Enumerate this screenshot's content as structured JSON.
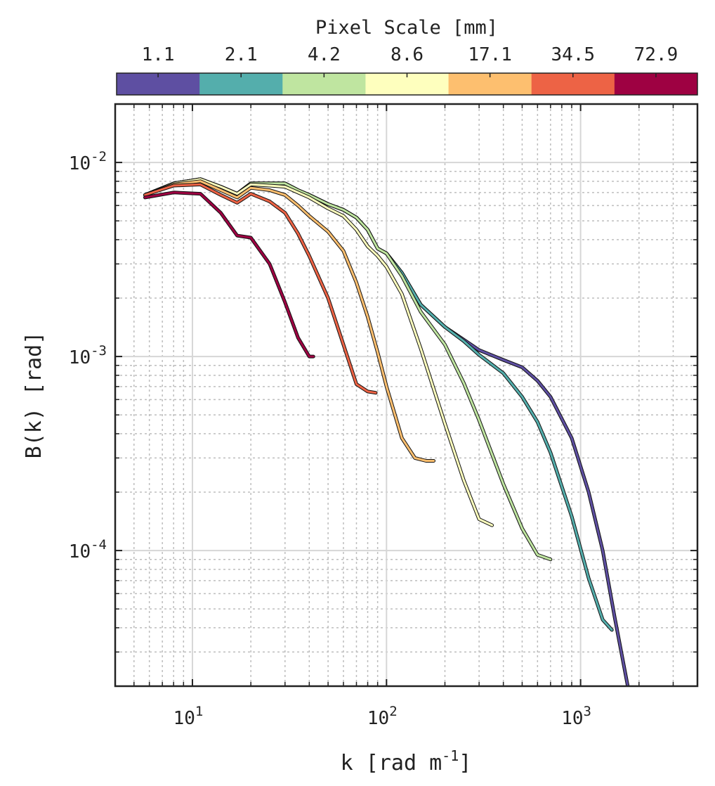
{
  "chart_data": {
    "type": "line",
    "xlabel": {
      "base": "k [rad m",
      "sup": "-1",
      "tail": "]"
    },
    "ylabel": "B(k) [rad]",
    "xscale": "log",
    "yscale": "log",
    "xlim": [
      4,
      4000
    ],
    "ylim": [
      2e-05,
      0.02
    ],
    "x_ticks": [
      {
        "base": "10",
        "exp": "1",
        "value": 10
      },
      {
        "base": "10",
        "exp": "2",
        "value": 100
      },
      {
        "base": "10",
        "exp": "3",
        "value": 1000
      }
    ],
    "y_ticks": [
      {
        "base": "10",
        "exp": "-4",
        "value": 0.0001
      },
      {
        "base": "10",
        "exp": "-3",
        "value": 0.001
      },
      {
        "base": "10",
        "exp": "-2",
        "value": 0.01
      }
    ],
    "grid": true,
    "colorbar": {
      "title": "Pixel Scale [mm]",
      "placement": "top",
      "labels": [
        "1.1",
        "2.1",
        "4.2",
        "8.6",
        "17.1",
        "34.5",
        "72.9"
      ],
      "colors": [
        "#5e4fa2",
        "#54aeac",
        "#bfe5a0",
        "#feffbe",
        "#fdbf6f",
        "#ed6345",
        "#9e0142"
      ]
    },
    "series": [
      {
        "color": "#5e4fa2",
        "x": [
          5.7,
          8,
          11,
          14,
          17,
          20,
          25,
          30,
          35,
          40,
          50,
          60,
          70,
          80,
          90,
          100,
          120,
          150,
          200,
          250,
          300,
          400,
          500,
          600,
          700,
          900,
          1100,
          1300,
          1500,
          1750
        ],
        "y": [
          0.0068,
          0.0078,
          0.0082,
          0.0075,
          0.0069,
          0.0078,
          0.0078,
          0.0078,
          0.0072,
          0.0068,
          0.0061,
          0.0057,
          0.0052,
          0.0045,
          0.0036,
          0.0034,
          0.0027,
          0.00185,
          0.00142,
          0.00122,
          0.00108,
          0.00096,
          0.00088,
          0.00075,
          0.00062,
          0.00038,
          0.0002,
          0.0001,
          4.5e-05,
          2e-05
        ]
      },
      {
        "color": "#54aeac",
        "x": [
          5.7,
          8,
          11,
          14,
          17,
          20,
          25,
          30,
          35,
          40,
          50,
          60,
          70,
          80,
          90,
          100,
          120,
          150,
          200,
          250,
          300,
          400,
          500,
          600,
          700,
          900,
          1100,
          1300,
          1450
        ],
        "y": [
          0.0068,
          0.0078,
          0.0082,
          0.0075,
          0.0069,
          0.0078,
          0.0078,
          0.0078,
          0.0072,
          0.0068,
          0.0061,
          0.0057,
          0.0052,
          0.0045,
          0.0036,
          0.0034,
          0.0027,
          0.00185,
          0.00142,
          0.0012,
          0.00102,
          0.00082,
          0.00062,
          0.00046,
          0.00032,
          0.00015,
          7.2e-05,
          4.4e-05,
          3.9e-05
        ]
      },
      {
        "color": "#bfe5a0",
        "x": [
          5.7,
          8,
          11,
          14,
          17,
          20,
          25,
          30,
          35,
          40,
          50,
          60,
          70,
          80,
          90,
          100,
          120,
          150,
          200,
          250,
          300,
          400,
          500,
          600,
          700
        ],
        "y": [
          0.0068,
          0.0078,
          0.0082,
          0.0075,
          0.0069,
          0.0078,
          0.0078,
          0.0078,
          0.0072,
          0.0068,
          0.0061,
          0.0057,
          0.0052,
          0.0045,
          0.0036,
          0.0034,
          0.0026,
          0.0017,
          0.00115,
          0.00073,
          0.00047,
          0.00022,
          0.00013,
          9.5e-05,
          9e-05
        ]
      },
      {
        "color": "#feffbe",
        "x": [
          5.7,
          8,
          11,
          14,
          17,
          20,
          25,
          30,
          35,
          40,
          50,
          60,
          70,
          80,
          90,
          100,
          120,
          150,
          200,
          250,
          300,
          350
        ],
        "y": [
          0.0068,
          0.0078,
          0.0082,
          0.0075,
          0.0069,
          0.0077,
          0.0076,
          0.0075,
          0.007,
          0.0066,
          0.0058,
          0.0053,
          0.0045,
          0.0037,
          0.0033,
          0.0029,
          0.0021,
          0.0011,
          0.00045,
          0.00023,
          0.000145,
          0.000135
        ]
      },
      {
        "color": "#fdbf6f",
        "x": [
          5.7,
          8,
          11,
          14,
          17,
          20,
          25,
          30,
          35,
          40,
          50,
          60,
          70,
          80,
          90,
          100,
          120,
          140,
          160,
          175
        ],
        "y": [
          0.0068,
          0.0077,
          0.008,
          0.0072,
          0.0066,
          0.0074,
          0.0072,
          0.0068,
          0.006,
          0.0053,
          0.0044,
          0.0035,
          0.0024,
          0.0016,
          0.00105,
          0.0007,
          0.00038,
          0.0003,
          0.00029,
          0.00029
        ]
      },
      {
        "color": "#ed6345",
        "x": [
          5.7,
          8,
          11,
          14,
          17,
          20,
          25,
          30,
          35,
          40,
          50,
          60,
          70,
          80,
          88
        ],
        "y": [
          0.0068,
          0.0076,
          0.0077,
          0.0068,
          0.0062,
          0.0069,
          0.0063,
          0.0055,
          0.0043,
          0.0033,
          0.002,
          0.00115,
          0.00072,
          0.00066,
          0.00065
        ]
      },
      {
        "color": "#9e0142",
        "x": [
          5.7,
          8,
          11,
          14,
          17,
          20,
          25,
          30,
          35,
          40,
          42
        ],
        "y": [
          0.0066,
          0.007,
          0.0069,
          0.0055,
          0.0042,
          0.0041,
          0.003,
          0.0019,
          0.00125,
          0.001,
          0.001
        ]
      }
    ]
  }
}
